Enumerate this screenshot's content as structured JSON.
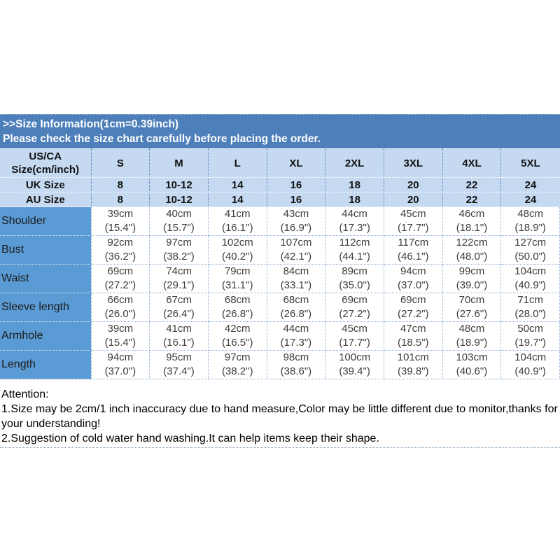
{
  "banner": {
    "title": ">>Size Information(1cm=0.39inch)",
    "subtitle": "Please check the size chart carefully before placing the order."
  },
  "colors": {
    "banner_blue": "#4d7fbb",
    "label_blue": "#5b9bd5",
    "header_light_blue": "#c5d9f1"
  },
  "table": {
    "corner": {
      "line1": "US/CA",
      "line2": "Size(cm/inch)"
    },
    "size_columns": [
      "S",
      "M",
      "L",
      "XL",
      "2XL",
      "3XL",
      "4XL",
      "5XL"
    ],
    "uk_row": {
      "label": "UK Size",
      "values": [
        "8",
        "10-12",
        "14",
        "16",
        "18",
        "20",
        "22",
        "24"
      ]
    },
    "au_row": {
      "label": "AU Size",
      "values": [
        "8",
        "10-12",
        "14",
        "16",
        "18",
        "20",
        "22",
        "24"
      ]
    },
    "measurement_rows": [
      {
        "label": "Shoulder",
        "cells": [
          [
            "39cm",
            "(15.4\")"
          ],
          [
            "40cm",
            "(15.7\")"
          ],
          [
            "41cm",
            "(16.1\")"
          ],
          [
            "43cm",
            "(16.9\")"
          ],
          [
            "44cm",
            "(17.3\")"
          ],
          [
            "45cm",
            "(17.7\")"
          ],
          [
            "46cm",
            "(18.1\")"
          ],
          [
            "48cm",
            "(18.9\")"
          ]
        ]
      },
      {
        "label": "Bust",
        "cells": [
          [
            "92cm",
            "(36.2\")"
          ],
          [
            "97cm",
            "(38.2\")"
          ],
          [
            "102cm",
            "(40.2\")"
          ],
          [
            "107cm",
            "(42.1\")"
          ],
          [
            "112cm",
            "(44.1\")"
          ],
          [
            "117cm",
            "(46.1\")"
          ],
          [
            "122cm",
            "(48.0\")"
          ],
          [
            "127cm",
            "(50.0\")"
          ]
        ]
      },
      {
        "label": "Waist",
        "cells": [
          [
            "69cm",
            "(27.2\")"
          ],
          [
            "74cm",
            "(29.1\")"
          ],
          [
            "79cm",
            "(31.1\")"
          ],
          [
            "84cm",
            "(33.1\")"
          ],
          [
            "89cm",
            "(35.0\")"
          ],
          [
            "94cm",
            "(37.0\")"
          ],
          [
            "99cm",
            "(39.0\")"
          ],
          [
            "104cm",
            "(40.9\")"
          ]
        ]
      },
      {
        "label": "Sleeve length",
        "cells": [
          [
            "66cm",
            "(26.0\")"
          ],
          [
            "67cm",
            "(26.4\")"
          ],
          [
            "68cm",
            "(26.8\")"
          ],
          [
            "68cm",
            "(26.8\")"
          ],
          [
            "69cm",
            "(27.2\")"
          ],
          [
            "69cm",
            "(27.2\")"
          ],
          [
            "70cm",
            "(27.6\")"
          ],
          [
            "71cm",
            "(28.0\")"
          ]
        ]
      },
      {
        "label": "Armhole",
        "cells": [
          [
            "39cm",
            "(15.4\")"
          ],
          [
            "41cm",
            "(16.1\")"
          ],
          [
            "42cm",
            "(16.5\")"
          ],
          [
            "44cm",
            "(17.3\")"
          ],
          [
            "45cm",
            "(17.7\")"
          ],
          [
            "47cm",
            "(18.5\")"
          ],
          [
            "48cm",
            "(18.9\")"
          ],
          [
            "50cm",
            "(19.7\")"
          ]
        ]
      },
      {
        "label": "Length",
        "cells": [
          [
            "94cm",
            "(37.0\")"
          ],
          [
            "95cm",
            "(37.4\")"
          ],
          [
            "97cm",
            "(38.2\")"
          ],
          [
            "98cm",
            "(38.6\")"
          ],
          [
            "100cm",
            "(39.4\")"
          ],
          [
            "101cm",
            "(39.8\")"
          ],
          [
            "103cm",
            "(40.6\")"
          ],
          [
            "104cm",
            "(40.9\")"
          ]
        ]
      }
    ]
  },
  "notes": {
    "heading": "Attention:",
    "note1": "1.Size may be 2cm/1 inch inaccuracy due to hand measure,Color may be little different due to monitor,thanks for your understanding!",
    "note2": "2.Suggestion of cold water hand washing.It can help items keep their shape."
  }
}
